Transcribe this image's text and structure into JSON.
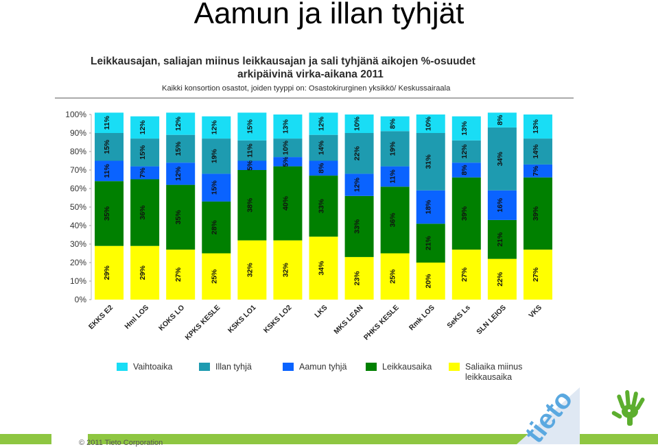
{
  "slide": {
    "title": "Aamun ja illan tyhjät",
    "copyright": "© 2011 Tieto Corporation"
  },
  "chart_data": {
    "type": "bar",
    "stacked": true,
    "title_line1": "Leikkausajan, saliajan miinus leikkausajan ja sali tyhjänä aikojen %-osuudet",
    "title_line2": "arkipäivinä virka-aikana 2011",
    "subtitle": "Kaikki konsortion osastot, joiden tyyppi on: Osastokirurginen yksikkö/ Keskussairaala",
    "categories": [
      "EKKS E2",
      "Hml LOS",
      "KOKS LO",
      "KPKS KESLE",
      "KSKS LO1",
      "KSKS LO2",
      "LKS",
      "MKS LEAN",
      "PHKS KESLE",
      "Rmk LOS",
      "SeKS Ls",
      "SLN LEIOS",
      "VKS"
    ],
    "yticks": [
      "0%",
      "10%",
      "20%",
      "30%",
      "40%",
      "50%",
      "60%",
      "70%",
      "80%",
      "90%",
      "100%"
    ],
    "ylim": [
      0,
      100
    ],
    "legend_position": "bottom",
    "series": [
      {
        "name": "Saliaika miinus leikkausaika",
        "color": "#ffff00",
        "values": [
          29,
          29,
          27,
          25,
          32,
          32,
          34,
          23,
          25,
          20,
          27,
          22,
          27
        ]
      },
      {
        "name": "Leikkausaika",
        "color": "#008000",
        "values": [
          35,
          36,
          35,
          28,
          38,
          40,
          33,
          33,
          36,
          21,
          39,
          21,
          39
        ]
      },
      {
        "name": "Aamun tyhjä",
        "color": "#0a63ff",
        "values": [
          11,
          7,
          12,
          15,
          5,
          5,
          8,
          12,
          11,
          18,
          8,
          16,
          7
        ]
      },
      {
        "name": "Illan tyhjä",
        "color": "#1e9bb0",
        "values": [
          15,
          15,
          15,
          19,
          11,
          10,
          14,
          22,
          19,
          31,
          12,
          34,
          14
        ]
      },
      {
        "name": "Vaihtoaika",
        "color": "#19ddf5",
        "values": [
          11,
          12,
          12,
          12,
          15,
          13,
          12,
          10,
          8,
          10,
          13,
          8,
          13
        ]
      }
    ],
    "legend": [
      {
        "label": "Vaihtoaika",
        "color": "#19ddf5"
      },
      {
        "label": "Illan tyhjä",
        "color": "#1e9bb0"
      },
      {
        "label": "Aamun tyhjä",
        "color": "#0a63ff"
      },
      {
        "label": "Leikkausaika",
        "color": "#008000"
      },
      {
        "label": "Saliaika miinus leikkausaika",
        "color": "#ffff00"
      }
    ]
  }
}
